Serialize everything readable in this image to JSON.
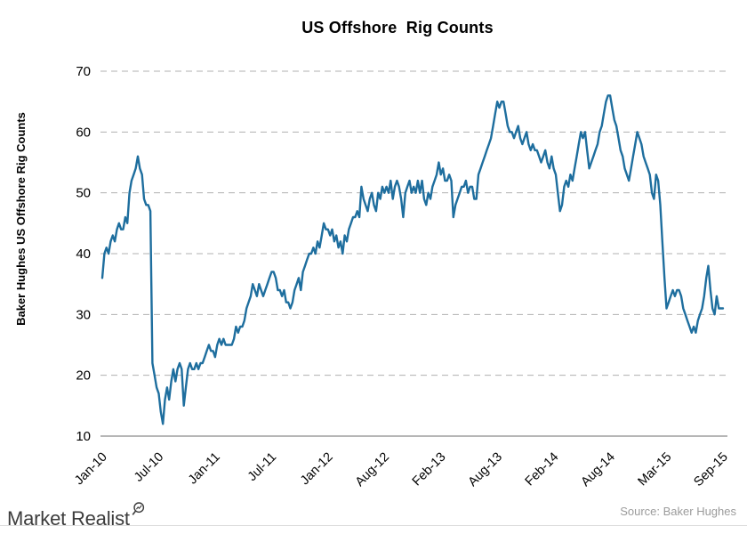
{
  "chart_data": {
    "type": "line",
    "title": "US Offshore  Rig Counts",
    "ylabel": "Baker Hughes US Offshore Rig Counts",
    "xlabel": "",
    "ylim": [
      10,
      70
    ],
    "y_ticks": [
      10,
      20,
      30,
      40,
      50,
      60,
      70
    ],
    "grid": "horizontal-dashed",
    "legend": "none",
    "x_tick_labels": [
      "Jan-10",
      "Jul-10",
      "Jan-11",
      "Jul-11",
      "Jan-12",
      "Aug-12",
      "Feb-13",
      "Aug-13",
      "Feb-14",
      "Aug-14",
      "Mar-15",
      "Sep-15"
    ],
    "x_tick_indices": [
      0,
      27,
      54,
      81,
      108,
      135,
      162,
      189,
      216,
      243,
      270,
      297
    ],
    "series": [
      {
        "name": "Baker Hughes US Offshore Rig Counts",
        "frequency": "weekly",
        "color": "#1E6E9E",
        "values": [
          36,
          40,
          41,
          40,
          42,
          43,
          42,
          44,
          45,
          44,
          44,
          46,
          45,
          50,
          52,
          53,
          54,
          56,
          54,
          53,
          49,
          48,
          48,
          47,
          22,
          20,
          18,
          17,
          14,
          12,
          16,
          18,
          16,
          19,
          21,
          19,
          21,
          22,
          21,
          15,
          18,
          21,
          22,
          21,
          21,
          22,
          21,
          22,
          22,
          23,
          24,
          25,
          24,
          24,
          23,
          25,
          26,
          25,
          26,
          25,
          25,
          25,
          25,
          26,
          28,
          27,
          28,
          28,
          29,
          31,
          32,
          33,
          35,
          34,
          33,
          35,
          34,
          33,
          34,
          35,
          36,
          37,
          37,
          36,
          34,
          34,
          33,
          34,
          32,
          32,
          31,
          32,
          34,
          35,
          36,
          34,
          37,
          38,
          39,
          40,
          40,
          41,
          40,
          42,
          41,
          43,
          45,
          44,
          44,
          43,
          44,
          42,
          43,
          41,
          42,
          40,
          43,
          42,
          44,
          45,
          46,
          46,
          47,
          46,
          51,
          49,
          48,
          47,
          49,
          50,
          48,
          47,
          50,
          49,
          51,
          50,
          51,
          50,
          52,
          49,
          51,
          52,
          51,
          49,
          46,
          50,
          51,
          52,
          50,
          51,
          50,
          52,
          50,
          52,
          49,
          48,
          50,
          49,
          51,
          52,
          53,
          55,
          53,
          54,
          52,
          52,
          53,
          52,
          46,
          48,
          49,
          50,
          51,
          51,
          52,
          50,
          51,
          51,
          49,
          49,
          53,
          54,
          55,
          56,
          57,
          58,
          59,
          61,
          63,
          65,
          64,
          65,
          65,
          63,
          61,
          60,
          60,
          59,
          60,
          61,
          59,
          58,
          59,
          60,
          58,
          57,
          58,
          57,
          57,
          56,
          55,
          56,
          57,
          55,
          54,
          56,
          54,
          53,
          50,
          47,
          48,
          51,
          52,
          51,
          53,
          52,
          54,
          56,
          58,
          60,
          59,
          60,
          57,
          54,
          55,
          56,
          57,
          58,
          60,
          61,
          63,
          65,
          66,
          66,
          64,
          62,
          61,
          59,
          57,
          56,
          54,
          53,
          52,
          54,
          56,
          58,
          60,
          59,
          58,
          56,
          55,
          54,
          53,
          50,
          49,
          53,
          52,
          48,
          42,
          36,
          31,
          32,
          33,
          34,
          33,
          34,
          34,
          33,
          31,
          30,
          29,
          28,
          27,
          28,
          27,
          29,
          30,
          31,
          33,
          36,
          38,
          34,
          31,
          30,
          33,
          31,
          31,
          31
        ]
      }
    ]
  },
  "footer": {
    "brand": "Market Realist",
    "source": "Source: Baker Hughes"
  },
  "colors": {
    "line": "#1E6E9E",
    "grid": "#b0b0b0",
    "axis": "#8a8a8a",
    "tick_text": "#000000",
    "source_text": "#9b9b9b",
    "divider": "#dcdcdc",
    "brand_text": "#3c3c3c"
  }
}
